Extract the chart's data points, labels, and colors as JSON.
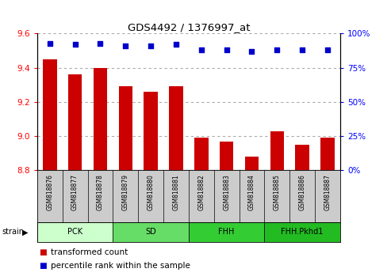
{
  "title": "GDS4492 / 1376997_at",
  "samples": [
    "GSM818876",
    "GSM818877",
    "GSM818878",
    "GSM818879",
    "GSM818880",
    "GSM818881",
    "GSM818882",
    "GSM818883",
    "GSM818884",
    "GSM818885",
    "GSM818886",
    "GSM818887"
  ],
  "red_values": [
    9.45,
    9.36,
    9.4,
    9.29,
    9.26,
    9.29,
    8.99,
    8.97,
    8.88,
    9.03,
    8.95,
    8.99
  ],
  "blue_values_pct": [
    93,
    92,
    93,
    91,
    91,
    92,
    88,
    88,
    87,
    88,
    88,
    88
  ],
  "ylim": [
    8.8,
    9.6
  ],
  "yticks": [
    8.8,
    9.0,
    9.2,
    9.4,
    9.6
  ],
  "y2lim": [
    0,
    100
  ],
  "y2ticks": [
    0,
    25,
    50,
    75,
    100
  ],
  "bar_color": "#cc0000",
  "dot_color": "#0000cc",
  "grid_color": "#aaaaaa",
  "strain_groups": [
    {
      "label": "PCK",
      "start": 0,
      "end": 3,
      "color": "#ccffcc"
    },
    {
      "label": "SD",
      "start": 3,
      "end": 6,
      "color": "#66dd66"
    },
    {
      "label": "FHH",
      "start": 6,
      "end": 9,
      "color": "#33cc33"
    },
    {
      "label": "FHH.Pkhd1",
      "start": 9,
      "end": 12,
      "color": "#22bb22"
    }
  ],
  "strain_label": "strain",
  "legend_red": "transformed count",
  "legend_blue": "percentile rank within the sample",
  "sample_band_color": "#cccccc",
  "bar_bottom": 8.8,
  "figwidth": 4.93,
  "figheight": 3.54
}
